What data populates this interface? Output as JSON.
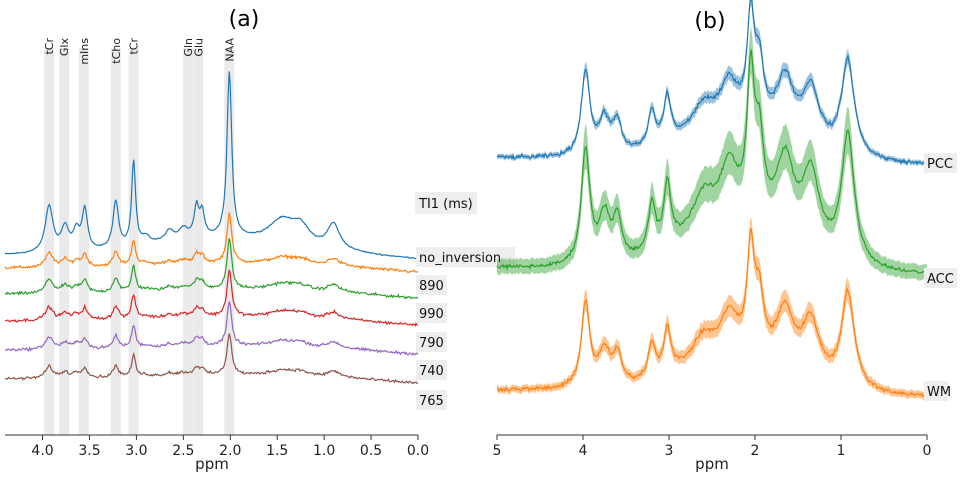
{
  "chart_data": [
    {
      "panel": "(a)",
      "type": "line",
      "title": "(a)",
      "xlabel": "ppm",
      "xlim": [
        4.4,
        0.0
      ],
      "x_ticks": [
        "4.0",
        "3.5",
        "3.0",
        "2.5",
        "2.0",
        "1.5",
        "1.0",
        "0.5",
        "0.0"
      ],
      "x_tick_values": [
        4.0,
        3.5,
        3.0,
        2.5,
        2.0,
        1.5,
        1.0,
        0.5,
        0.0
      ],
      "metabolites": [
        {
          "label": "tCr",
          "ppm": 3.93
        },
        {
          "label": "Glx",
          "ppm": 3.77
        },
        {
          "label": "mIns",
          "ppm": 3.56
        },
        {
          "label": "tCho",
          "ppm": 3.22
        },
        {
          "label": "tCr",
          "ppm": 3.03
        },
        {
          "label": "Gln",
          "ppm": 2.45
        },
        {
          "label": "Glu",
          "ppm": 2.34
        },
        {
          "label": "NAA",
          "ppm": 2.01
        }
      ],
      "legend_title": "TI1 (ms)",
      "series": [
        {
          "name": "no_inversion",
          "color": "#1f77b4",
          "scale": 1.0
        },
        {
          "name": "890",
          "color": "#ff7f0e",
          "scale": 0.3
        },
        {
          "name": "990",
          "color": "#2ca02c",
          "scale": 0.3
        },
        {
          "name": "790",
          "color": "#d62728",
          "scale": 0.28
        },
        {
          "name": "740",
          "color": "#9467bd",
          "scale": 0.26
        },
        {
          "name": "765",
          "color": "#8c564b",
          "scale": 0.25
        }
      ]
    },
    {
      "panel": "(b)",
      "type": "line",
      "title": "(b)",
      "xlabel": "ppm",
      "xlim": [
        5,
        0
      ],
      "x_ticks": [
        "5",
        "4",
        "3",
        "2",
        "1",
        "0"
      ],
      "x_tick_values": [
        5,
        4,
        3,
        2,
        1,
        0
      ],
      "series": [
        {
          "name": "PCC",
          "color": "#1f77b4",
          "band": true
        },
        {
          "name": "ACC",
          "color": "#2ca02c",
          "band": true
        },
        {
          "name": "WM",
          "color": "#ff7f0e",
          "band": true
        }
      ]
    }
  ]
}
